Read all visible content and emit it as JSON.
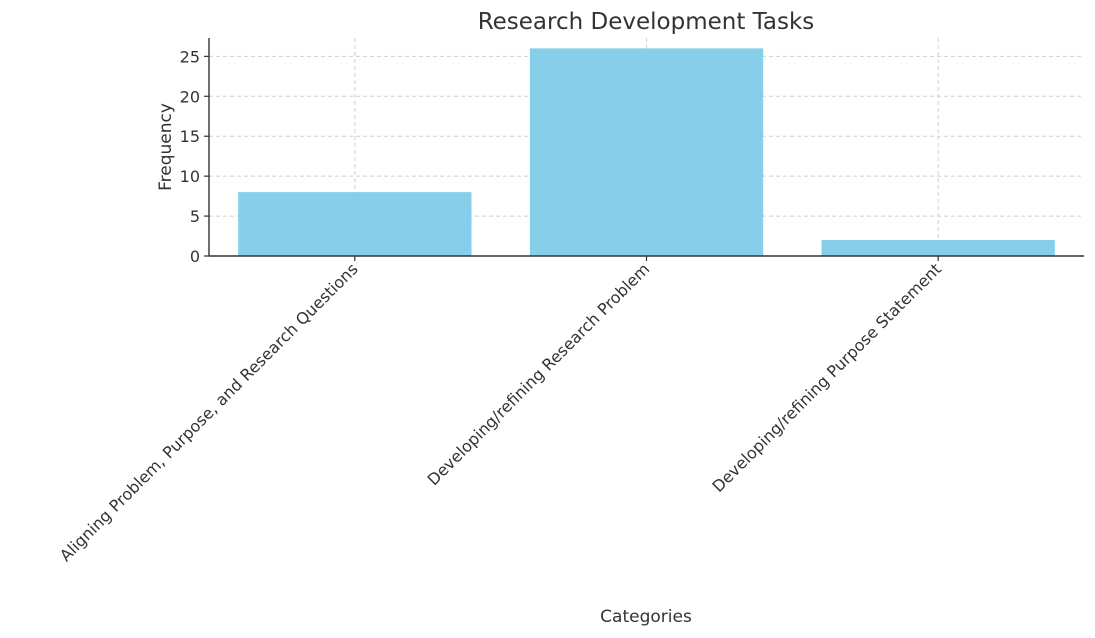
{
  "chart_data": {
    "type": "bar",
    "title": "Research Development Tasks",
    "xlabel": "Categories",
    "ylabel": "Frequency",
    "categories": [
      "Aligning Problem, Purpose, and Research Questions",
      "Developing/refining Research Problem",
      "Developing/refining Purpose Statement"
    ],
    "values": [
      8,
      26,
      2
    ],
    "ylim": [
      0,
      27.3
    ],
    "yticks": [
      0,
      5,
      10,
      15,
      20,
      25
    ],
    "grid": true,
    "bar_color": "#87CEEB",
    "category_label_rotation_deg": -45
  }
}
